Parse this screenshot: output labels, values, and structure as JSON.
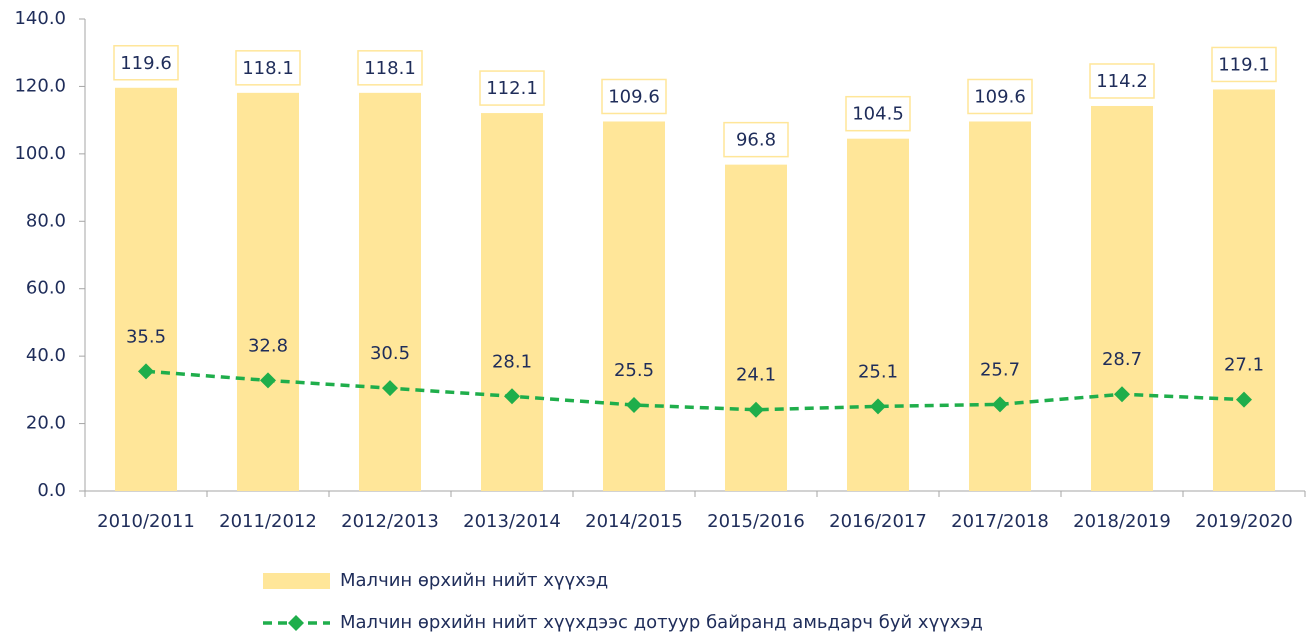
{
  "chart_data": {
    "type": "combo",
    "categories": [
      "2010/2011",
      "2011/2012",
      "2012/2013",
      "2013/2014",
      "2014/2015",
      "2015/2016",
      "2016/2017",
      "2017/2018",
      "2018/2019",
      "2019/2020"
    ],
    "series": [
      {
        "name": "Малчин өрхийн нийт хүүхэд",
        "type": "bar",
        "color": "#ffe699",
        "values": [
          119.6,
          118.1,
          118.1,
          112.1,
          109.6,
          96.8,
          104.5,
          109.6,
          114.2,
          119.1
        ]
      },
      {
        "name": "Малчин өрхийн нийт хүүхдээс дотуур байранд амьдарч буй хүүхэд",
        "type": "line",
        "color": "#1fae4b",
        "values": [
          35.5,
          32.8,
          30.5,
          28.1,
          25.5,
          24.1,
          25.1,
          25.7,
          28.7,
          27.1
        ]
      }
    ],
    "ylim": [
      0,
      140
    ],
    "yticks": [
      {
        "value": 0,
        "label": "0.0"
      },
      {
        "value": 20,
        "label": "20.0"
      },
      {
        "value": 40,
        "label": "40.0"
      },
      {
        "value": 60,
        "label": "60.0"
      },
      {
        "value": 80,
        "label": "80.0"
      },
      {
        "value": 100,
        "label": "100.0"
      },
      {
        "value": 120,
        "label": "120.0"
      },
      {
        "value": 140,
        "label": "140.0"
      }
    ],
    "legend": "bottom"
  }
}
